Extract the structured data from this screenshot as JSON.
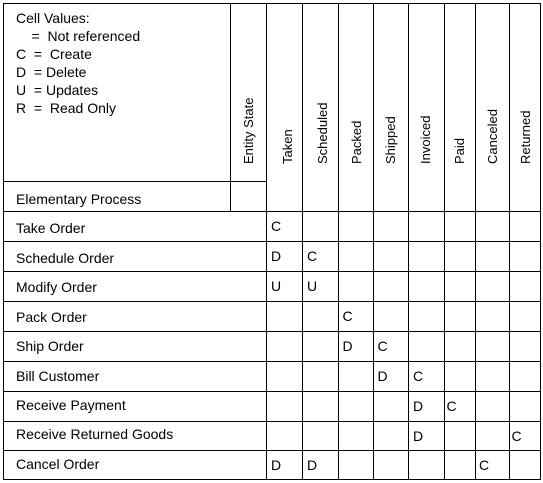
{
  "legend": {
    "title": "Cell Values:",
    "lines": [
      "    =  Not referenced",
      "C  =  Create",
      "D  = Delete",
      "U  = Updates",
      "R  =  Read Only"
    ]
  },
  "row_header": "Elementary Process",
  "entity_state_label": "Entity State",
  "columns": [
    "Taken",
    "Scheduled",
    "Packed",
    "Shipped",
    "Invoiced",
    "Paid",
    "Canceled",
    "Returned"
  ],
  "rows": [
    {
      "process": "Take Order",
      "cells": [
        "C",
        "",
        "",
        "",
        "",
        "",
        "",
        ""
      ]
    },
    {
      "process": "Schedule Order",
      "cells": [
        "D",
        "C",
        "",
        "",
        "",
        "",
        "",
        ""
      ]
    },
    {
      "process": "Modify Order",
      "cells": [
        "U",
        "U",
        "",
        "",
        "",
        "",
        "",
        ""
      ]
    },
    {
      "process": "Pack Order",
      "cells": [
        "",
        "",
        "C",
        "",
        "",
        "",
        "",
        ""
      ]
    },
    {
      "process": "Ship Order",
      "cells": [
        "",
        "",
        "D",
        "C",
        "",
        "",
        "",
        ""
      ]
    },
    {
      "process": "Bill Customer",
      "cells": [
        "",
        "",
        "",
        "D",
        "C",
        "",
        "",
        ""
      ]
    },
    {
      "process": "Receive Payment",
      "cells": [
        "",
        "",
        "",
        "",
        "D",
        "C",
        "",
        ""
      ]
    },
    {
      "process": "Receive Returned Goods",
      "cells": [
        "",
        "",
        "",
        "",
        "D",
        "",
        "",
        "C"
      ]
    },
    {
      "process": "Cancel Order",
      "cells": [
        "D",
        "D",
        "",
        "",
        "",
        "",
        "C",
        ""
      ]
    }
  ]
}
